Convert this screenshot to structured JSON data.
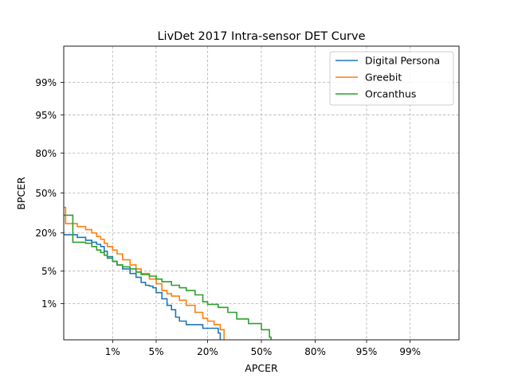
{
  "chart_data": {
    "type": "line",
    "title": "LivDet 2017 Intra-sensor DET Curve",
    "xlabel": "APCER",
    "ylabel": "BPCER",
    "scale": "probit",
    "axis_range_percent": [
      0.1,
      99.9
    ],
    "x_ticks": [
      "1%",
      "5%",
      "20%",
      "50%",
      "80%",
      "95%",
      "99%"
    ],
    "y_ticks": [
      "1%",
      "5%",
      "20%",
      "50%",
      "80%",
      "95%",
      "99%"
    ],
    "grid": true,
    "legend_position": "top-right",
    "series": [
      {
        "name": "Digital Persona",
        "color": "#1f77b4",
        "points": [
          [
            0.1,
            19
          ],
          [
            0.2,
            17.5
          ],
          [
            0.3,
            16
          ],
          [
            0.4,
            15
          ],
          [
            0.5,
            14
          ],
          [
            0.6,
            13
          ],
          [
            0.7,
            11
          ],
          [
            0.8,
            9
          ],
          [
            1.0,
            7.5
          ],
          [
            1.2,
            6.5
          ],
          [
            1.5,
            5.5
          ],
          [
            2.0,
            4.5
          ],
          [
            2.5,
            3.8
          ],
          [
            3.0,
            3.0
          ],
          [
            3.5,
            2.6
          ],
          [
            4.0,
            2.5
          ],
          [
            4.5,
            2.3
          ],
          [
            5.0,
            1.8
          ],
          [
            6.0,
            1.3
          ],
          [
            7.0,
            0.9
          ],
          [
            8.0,
            0.7
          ],
          [
            9.0,
            0.45
          ],
          [
            10.0,
            0.35
          ],
          [
            12.0,
            0.28
          ],
          [
            15.0,
            0.28
          ],
          [
            18.0,
            0.22
          ],
          [
            20.0,
            0.22
          ],
          [
            24.0,
            0.22
          ],
          [
            25.0,
            0.16
          ],
          [
            26.0,
            0.1
          ]
        ]
      },
      {
        "name": "Greebit",
        "color": "#ff7f0e",
        "points": [
          [
            0.1,
            38
          ],
          [
            0.11,
            26
          ],
          [
            0.15,
            26
          ],
          [
            0.2,
            24
          ],
          [
            0.3,
            22
          ],
          [
            0.4,
            20
          ],
          [
            0.5,
            18
          ],
          [
            0.6,
            16.5
          ],
          [
            0.7,
            14.5
          ],
          [
            0.8,
            13
          ],
          [
            1.0,
            11.5
          ],
          [
            1.2,
            10
          ],
          [
            1.5,
            8
          ],
          [
            2.0,
            6.5
          ],
          [
            2.5,
            5.5
          ],
          [
            3.0,
            4.5
          ],
          [
            4.0,
            3.5
          ],
          [
            5.0,
            2.8
          ],
          [
            6.0,
            2.0
          ],
          [
            7.0,
            1.7
          ],
          [
            8.0,
            1.5
          ],
          [
            10.0,
            1.2
          ],
          [
            12.0,
            0.9
          ],
          [
            15.0,
            0.6
          ],
          [
            18.0,
            0.42
          ],
          [
            20.0,
            0.35
          ],
          [
            23.0,
            0.28
          ],
          [
            26.0,
            0.2
          ],
          [
            28.0,
            0.1
          ]
        ]
      },
      {
        "name": "Orcanthus",
        "color": "#2ca02c",
        "points": [
          [
            0.1,
            32
          ],
          [
            0.15,
            32
          ],
          [
            0.16,
            15
          ],
          [
            0.3,
            14.5
          ],
          [
            0.4,
            13
          ],
          [
            0.5,
            11.5
          ],
          [
            0.6,
            10.5
          ],
          [
            0.7,
            9.5
          ],
          [
            0.8,
            8.5
          ],
          [
            1.0,
            7.5
          ],
          [
            1.2,
            6.5
          ],
          [
            1.5,
            6.0
          ],
          [
            2.0,
            5.5
          ],
          [
            2.5,
            4.8
          ],
          [
            3.0,
            4.3
          ],
          [
            4.0,
            4.0
          ],
          [
            5.0,
            3.5
          ],
          [
            6.0,
            3.1
          ],
          [
            8.0,
            2.6
          ],
          [
            10.0,
            2.3
          ],
          [
            12.0,
            2.0
          ],
          [
            15.0,
            1.6
          ],
          [
            18.0,
            1.1
          ],
          [
            20.0,
            0.95
          ],
          [
            25.0,
            0.8
          ],
          [
            30.0,
            0.6
          ],
          [
            35.0,
            0.4
          ],
          [
            42.0,
            0.3
          ],
          [
            50.0,
            0.2
          ],
          [
            55.0,
            0.12
          ],
          [
            56.0,
            0.1
          ]
        ]
      }
    ]
  }
}
